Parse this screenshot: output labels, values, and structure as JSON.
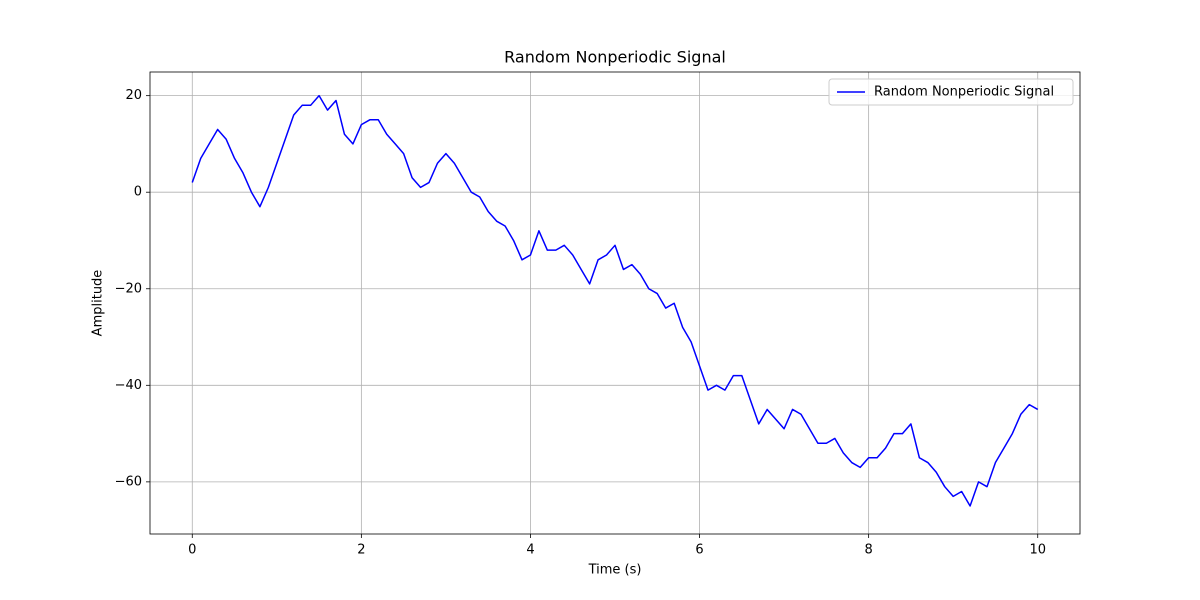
{
  "chart_data": {
    "type": "line",
    "title": "Random Nonperiodic Signal",
    "x_label": "Time (s)",
    "y_label": "Amplitude",
    "x": [
      0.0,
      0.1,
      0.2,
      0.3,
      0.4,
      0.5,
      0.6,
      0.7,
      0.8,
      0.9,
      1.0,
      1.1,
      1.2,
      1.3,
      1.4,
      1.5,
      1.6,
      1.7,
      1.8,
      1.9,
      2.0,
      2.1,
      2.2,
      2.3,
      2.4,
      2.5,
      2.6,
      2.7,
      2.8,
      2.9,
      3.0,
      3.1,
      3.2,
      3.3,
      3.4,
      3.5,
      3.6,
      3.7,
      3.8,
      3.9,
      4.0,
      4.1,
      4.2,
      4.3,
      4.4,
      4.5,
      4.6,
      4.7,
      4.8,
      4.9,
      5.0,
      5.1,
      5.2,
      5.3,
      5.4,
      5.5,
      5.6,
      5.7,
      5.8,
      5.9,
      6.0,
      6.1,
      6.2,
      6.3,
      6.4,
      6.5,
      6.6,
      6.7,
      6.8,
      6.9,
      7.0,
      7.1,
      7.2,
      7.3,
      7.4,
      7.5,
      7.6,
      7.7,
      7.8,
      7.9,
      8.0,
      8.1,
      8.2,
      8.3,
      8.4,
      8.5,
      8.6,
      8.7,
      8.8,
      8.9,
      9.0,
      9.1,
      9.2,
      9.3,
      9.4,
      9.5,
      9.6,
      9.7,
      9.8,
      9.9,
      10.0
    ],
    "series": [
      {
        "name": "Random Nonperiodic Signal",
        "color": "#0000ff",
        "values": [
          2,
          7,
          10,
          13,
          11,
          7,
          4,
          0,
          -3,
          1,
          6,
          11,
          16,
          18,
          18,
          20,
          17,
          19,
          12,
          10,
          14,
          15,
          15,
          12,
          10,
          8,
          3,
          1,
          2,
          6,
          8,
          6,
          3,
          0,
          -1,
          -4,
          -6,
          -7,
          -10,
          -14,
          -13,
          -8,
          -12,
          -12,
          -11,
          -13,
          -16,
          -19,
          -14,
          -13,
          -11,
          -16,
          -15,
          -17,
          -20,
          -21,
          -24,
          -23,
          -28,
          -31,
          -36,
          -41,
          -40,
          -41,
          -38,
          -38,
          -43,
          -48,
          -45,
          -47,
          -49,
          -45,
          -46,
          -49,
          -52,
          -52,
          -51,
          -54,
          -56,
          -57,
          -55,
          -55,
          -53,
          -50,
          -50,
          -48,
          -55,
          -56,
          -58,
          -61,
          -63,
          -62,
          -65,
          -60,
          -61,
          -56,
          -53,
          -50,
          -46,
          -44,
          -45
        ]
      }
    ],
    "xlim": [
      -0.5,
      10.5
    ],
    "ylim": [
      -70.8,
      24.9
    ],
    "xticks": [
      0,
      2,
      4,
      6,
      8,
      10
    ],
    "yticks": [
      {
        "value": -60,
        "label": "−60"
      },
      {
        "value": -40,
        "label": "−40"
      },
      {
        "value": -20,
        "label": "−20"
      },
      0,
      20
    ],
    "grid": true,
    "legend": "upper right"
  }
}
